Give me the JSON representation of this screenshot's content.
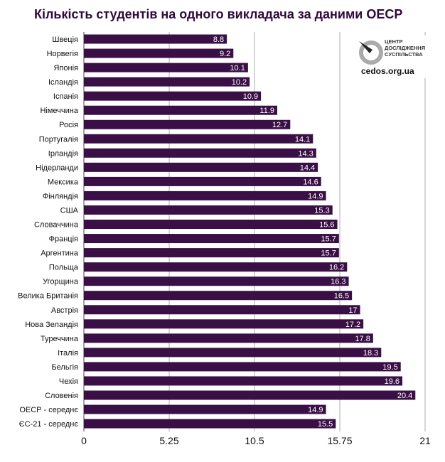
{
  "chart_data": {
    "type": "bar",
    "orientation": "horizontal",
    "title": "Кількість студентів на одного викладача за даними ОЕСР",
    "categories": [
      "Швеція",
      "Норвегія",
      "Японія",
      "Ісландія",
      "Іспанія",
      "Німеччина",
      "Росія",
      "Португалія",
      "Ірландія",
      "Нідерланди",
      "Мексика",
      "Фінляндія",
      "США",
      "Словаччина",
      "Франція",
      "Аргентина",
      "Польща",
      "Угорщина",
      "Велика Британія",
      "Австрія",
      "Нова Зеландія",
      "Туреччина",
      "Італія",
      "Бельгія",
      "Чехія",
      "Словенія",
      "ОЕСР - середнє",
      "ЄС-21 - середнє"
    ],
    "values": [
      8.8,
      9.2,
      10.1,
      10.2,
      10.9,
      11.9,
      12.7,
      14.1,
      14.3,
      14.4,
      14.6,
      14.9,
      15.3,
      15.6,
      15.7,
      15.7,
      16.2,
      16.3,
      16.5,
      17,
      17.2,
      17.8,
      18.3,
      19.5,
      19.6,
      20.4,
      14.9,
      15.5
    ],
    "value_labels": [
      "8.8",
      "9.2",
      "10.1",
      "10.2",
      "10.9",
      "11.9",
      "12.7",
      "14.1",
      "14.3",
      "14.4",
      "14.6",
      "14.9",
      "15.3",
      "15.6",
      "15.7",
      "15.7",
      "16.2",
      "16.3",
      "16.5",
      "17",
      "17.2",
      "17.8",
      "18.3",
      "19.5",
      "19.6",
      "20.4",
      "14.9",
      "15.5"
    ],
    "xlim": [
      0,
      21
    ],
    "xticks": [
      "0",
      "5.25",
      "10.5",
      "15.75",
      "21"
    ],
    "xtick_values": [
      0,
      5.25,
      10.5,
      15.75,
      21
    ],
    "grid": true,
    "bar_color": "#3a0f45",
    "title_color": "#2e0a3a"
  },
  "logo": {
    "text_lines": [
      "ЦЕНТР",
      "ДОСЛІДЖЕННЯ",
      "СУСПІЛЬСТВА"
    ],
    "url": "cedos.org.ua"
  }
}
